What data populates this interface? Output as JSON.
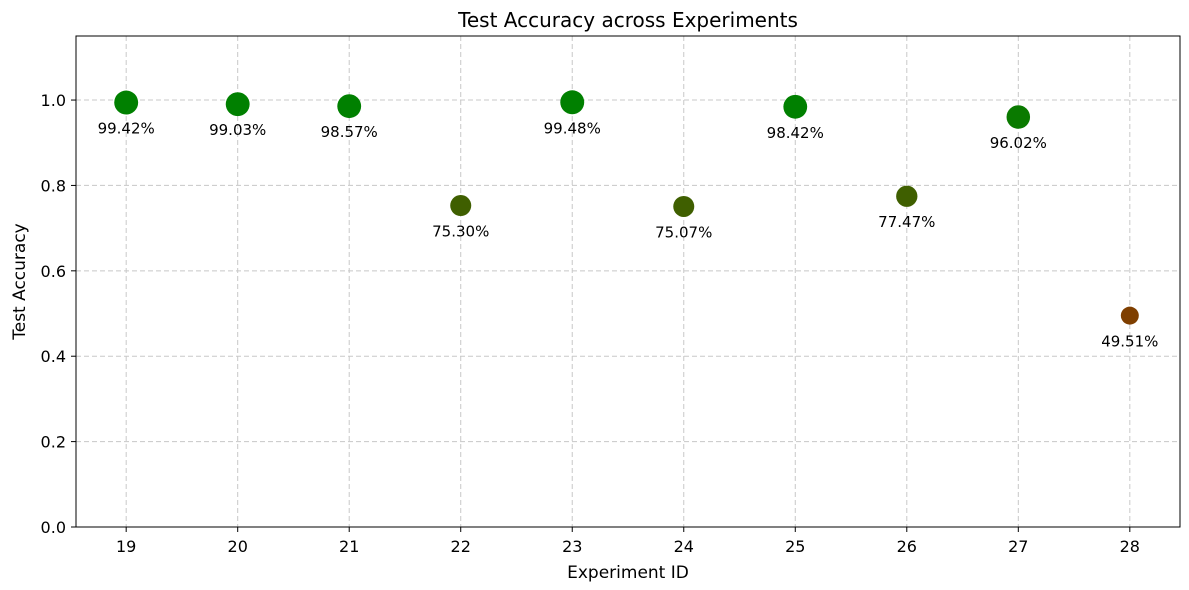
{
  "chart_data": {
    "type": "scatter",
    "title": "Test Accuracy across Experiments",
    "xlabel": "Experiment ID",
    "ylabel": "Test Accuracy",
    "xlim": [
      18.55,
      28.45
    ],
    "ylim": [
      0.0,
      1.15
    ],
    "grid": true,
    "x_ticks": [
      "19",
      "20",
      "21",
      "22",
      "23",
      "24",
      "25",
      "26",
      "27",
      "28"
    ],
    "y_ticks": [
      "0.0",
      "0.2",
      "0.4",
      "0.6",
      "0.8",
      "1.0"
    ],
    "points": [
      {
        "x": 19,
        "y": 0.9942,
        "label": "99.42%",
        "color": "#008000"
      },
      {
        "x": 20,
        "y": 0.9903,
        "label": "99.03%",
        "color": "#008000"
      },
      {
        "x": 21,
        "y": 0.9857,
        "label": "98.57%",
        "color": "#008000"
      },
      {
        "x": 22,
        "y": 0.753,
        "label": "75.30%",
        "color": "#3f5f00"
      },
      {
        "x": 23,
        "y": 0.9948,
        "label": "99.48%",
        "color": "#008000"
      },
      {
        "x": 24,
        "y": 0.7507,
        "label": "75.07%",
        "color": "#3f5f00"
      },
      {
        "x": 25,
        "y": 0.9842,
        "label": "98.42%",
        "color": "#008000"
      },
      {
        "x": 26,
        "y": 0.7747,
        "label": "77.47%",
        "color": "#3f5f00"
      },
      {
        "x": 27,
        "y": 0.9602,
        "label": "96.02%",
        "color": "#0a7a00"
      },
      {
        "x": 28,
        "y": 0.4951,
        "label": "49.51%",
        "color": "#7f3f00"
      }
    ]
  }
}
